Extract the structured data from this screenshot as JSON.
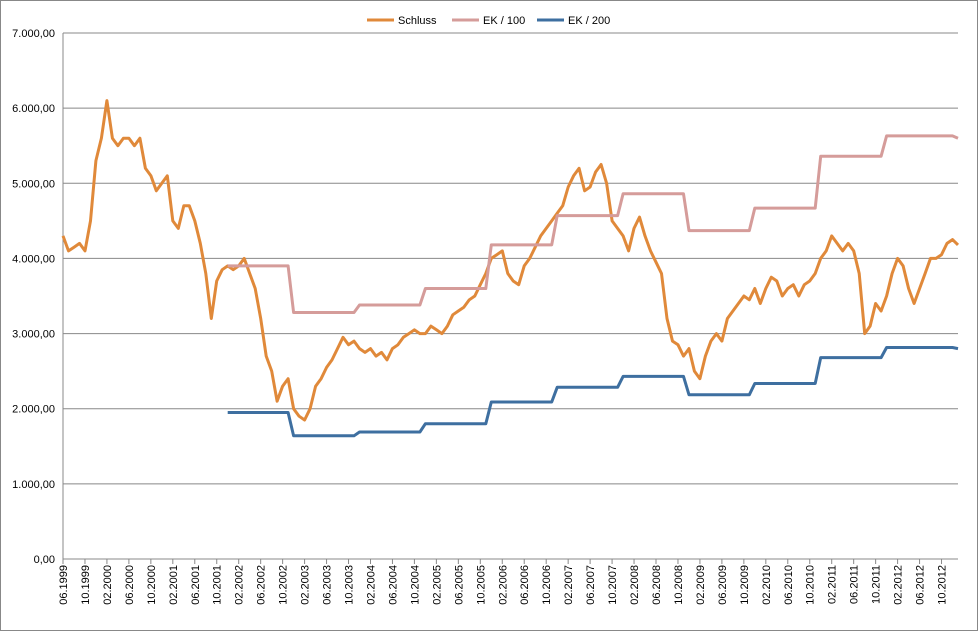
{
  "chart_data": {
    "type": "line",
    "categories": [
      "06.1999",
      null,
      null,
      null,
      "10.1999",
      null,
      null,
      null,
      "02.2000",
      null,
      null,
      null,
      "06.2000",
      null,
      null,
      null,
      "10.2000",
      null,
      null,
      null,
      "02.2001",
      null,
      null,
      null,
      "06.2001",
      null,
      null,
      null,
      "10.2001",
      null,
      null,
      null,
      "02.2002",
      null,
      null,
      null,
      "06.2002",
      null,
      null,
      null,
      "10.2002",
      null,
      null,
      null,
      "02.2003",
      null,
      null,
      null,
      "06.2003",
      null,
      null,
      null,
      "10.2003",
      null,
      null,
      null,
      "02.2004",
      null,
      null,
      null,
      "06.2004",
      null,
      null,
      null,
      "10.2004",
      null,
      null,
      null,
      "02.2005",
      null,
      null,
      null,
      "06.2005",
      null,
      null,
      null,
      "10.2005",
      null,
      null,
      null,
      "02.2006",
      null,
      null,
      null,
      "06.2006",
      null,
      null,
      null,
      "10.2006",
      null,
      null,
      null,
      "02.2007",
      null,
      null,
      null,
      "06.2007",
      null,
      null,
      null,
      "10.2007",
      null,
      null,
      null,
      "02.2008",
      null,
      null,
      null,
      "06.2008",
      null,
      null,
      null,
      "10.2008",
      null,
      null,
      null,
      "02.2009",
      null,
      null,
      null,
      "06.2009",
      null,
      null,
      null,
      "10.2009",
      null,
      null,
      null,
      "02.2010",
      null,
      null,
      null,
      "06.2010",
      null,
      null,
      null,
      "10.2010",
      null,
      null,
      null,
      "02.2011",
      null,
      null,
      null,
      "06.2011",
      null,
      null,
      null,
      "10.2011",
      null,
      null,
      null,
      "02.2012",
      null,
      null,
      null,
      "06.2012",
      null,
      null,
      null,
      "10.2012",
      null,
      null,
      null
    ],
    "series": [
      {
        "name": "Schluss",
        "color": "#e0893a",
        "values": [
          4300,
          4100,
          4150,
          4200,
          4100,
          4500,
          5300,
          5600,
          6100,
          5600,
          5500,
          5600,
          5600,
          5500,
          5600,
          5200,
          5100,
          4900,
          5000,
          5100,
          4500,
          4400,
          4700,
          4700,
          4500,
          4200,
          3800,
          3200,
          3700,
          3850,
          3900,
          3850,
          3900,
          4000,
          3800,
          3600,
          3200,
          2700,
          2500,
          2100,
          2300,
          2400,
          2000,
          1900,
          1850,
          2000,
          2300,
          2400,
          2550,
          2650,
          2800,
          2950,
          2850,
          2900,
          2800,
          2750,
          2800,
          2700,
          2750,
          2650,
          2800,
          2850,
          2950,
          3000,
          3050,
          3000,
          3000,
          3100,
          3050,
          3000,
          3100,
          3250,
          3300,
          3350,
          3450,
          3500,
          3650,
          3800,
          4000,
          4050,
          4100,
          3800,
          3700,
          3650,
          3900,
          4000,
          4150,
          4300,
          4400,
          4500,
          4600,
          4700,
          4950,
          5100,
          5200,
          4900,
          4950,
          5150,
          5250,
          5000,
          4500,
          4400,
          4300,
          4100,
          4400,
          4550,
          4300,
          4100,
          3950,
          3800,
          3200,
          2900,
          2850,
          2700,
          2800,
          2500,
          2400,
          2700,
          2900,
          3000,
          2900,
          3200,
          3300,
          3400,
          3500,
          3450,
          3600,
          3400,
          3600,
          3750,
          3700,
          3500,
          3600,
          3650,
          3500,
          3650,
          3700,
          3800,
          4000,
          4100,
          4300,
          4200,
          4100,
          4200,
          4100,
          3800,
          3000,
          3100,
          3400,
          3300,
          3500,
          3800,
          4000,
          3900,
          3600,
          3400,
          3600,
          3800,
          4000,
          4000,
          4050,
          4200,
          4250,
          4180
        ]
      },
      {
        "name": "EK / 100",
        "color": "#d59c9a",
        "values": [
          null,
          null,
          null,
          null,
          null,
          null,
          null,
          null,
          null,
          null,
          null,
          null,
          null,
          null,
          null,
          null,
          null,
          null,
          null,
          null,
          null,
          null,
          null,
          null,
          null,
          null,
          null,
          null,
          null,
          null,
          3900,
          3900,
          3900,
          3900,
          3900,
          3900,
          3900,
          3900,
          3900,
          3900,
          3900,
          3900,
          3280,
          3280,
          3280,
          3280,
          3280,
          3280,
          3280,
          3280,
          3280,
          3280,
          3280,
          3280,
          3380,
          3380,
          3380,
          3380,
          3380,
          3380,
          3380,
          3380,
          3380,
          3380,
          3380,
          3380,
          3600,
          3600,
          3600,
          3600,
          3600,
          3600,
          3600,
          3600,
          3600,
          3600,
          3600,
          3600,
          4180,
          4180,
          4180,
          4180,
          4180,
          4180,
          4180,
          4180,
          4180,
          4180,
          4180,
          4180,
          4570,
          4570,
          4570,
          4570,
          4570,
          4570,
          4570,
          4570,
          4570,
          4570,
          4570,
          4570,
          4860,
          4860,
          4860,
          4860,
          4860,
          4860,
          4860,
          4860,
          4860,
          4860,
          4860,
          4860,
          4370,
          4370,
          4370,
          4370,
          4370,
          4370,
          4370,
          4370,
          4370,
          4370,
          4370,
          4370,
          4670,
          4670,
          4670,
          4670,
          4670,
          4670,
          4670,
          4670,
          4670,
          4670,
          4670,
          4670,
          5360,
          5360,
          5360,
          5360,
          5360,
          5360,
          5360,
          5360,
          5360,
          5360,
          5360,
          5360,
          5630,
          5630,
          5630,
          5630,
          5630,
          5630,
          5630,
          5630,
          5630,
          5630,
          5630,
          5630,
          5630,
          5600
        ]
      },
      {
        "name": "EK / 200",
        "color": "#3e6fa0",
        "values": [
          null,
          null,
          null,
          null,
          null,
          null,
          null,
          null,
          null,
          null,
          null,
          null,
          null,
          null,
          null,
          null,
          null,
          null,
          null,
          null,
          null,
          null,
          null,
          null,
          null,
          null,
          null,
          null,
          null,
          null,
          1950,
          1950,
          1950,
          1950,
          1950,
          1950,
          1950,
          1950,
          1950,
          1950,
          1950,
          1950,
          1640,
          1640,
          1640,
          1640,
          1640,
          1640,
          1640,
          1640,
          1640,
          1640,
          1640,
          1640,
          1690,
          1690,
          1690,
          1690,
          1690,
          1690,
          1690,
          1690,
          1690,
          1690,
          1690,
          1690,
          1800,
          1800,
          1800,
          1800,
          1800,
          1800,
          1800,
          1800,
          1800,
          1800,
          1800,
          1800,
          2090,
          2090,
          2090,
          2090,
          2090,
          2090,
          2090,
          2090,
          2090,
          2090,
          2090,
          2090,
          2285,
          2285,
          2285,
          2285,
          2285,
          2285,
          2285,
          2285,
          2285,
          2285,
          2285,
          2285,
          2430,
          2430,
          2430,
          2430,
          2430,
          2430,
          2430,
          2430,
          2430,
          2430,
          2430,
          2430,
          2185,
          2185,
          2185,
          2185,
          2185,
          2185,
          2185,
          2185,
          2185,
          2185,
          2185,
          2185,
          2335,
          2335,
          2335,
          2335,
          2335,
          2335,
          2335,
          2335,
          2335,
          2335,
          2335,
          2335,
          2680,
          2680,
          2680,
          2680,
          2680,
          2680,
          2680,
          2680,
          2680,
          2680,
          2680,
          2680,
          2815,
          2815,
          2815,
          2815,
          2815,
          2815,
          2815,
          2815,
          2815,
          2815,
          2815,
          2815,
          2815,
          2800
        ]
      }
    ],
    "ylim": [
      0,
      7000
    ],
    "yticks": [
      {
        "value": 0,
        "label": "0,00"
      },
      {
        "value": 1000,
        "label": "1.000,00"
      },
      {
        "value": 2000,
        "label": "2.000,00"
      },
      {
        "value": 3000,
        "label": "3.000,00"
      },
      {
        "value": 4000,
        "label": "4.000,00"
      },
      {
        "value": 5000,
        "label": "5.000,00"
      },
      {
        "value": 6000,
        "label": "6.000,00"
      },
      {
        "value": 7000,
        "label": "7.000,00"
      }
    ],
    "grid": true,
    "legend": "top"
  }
}
